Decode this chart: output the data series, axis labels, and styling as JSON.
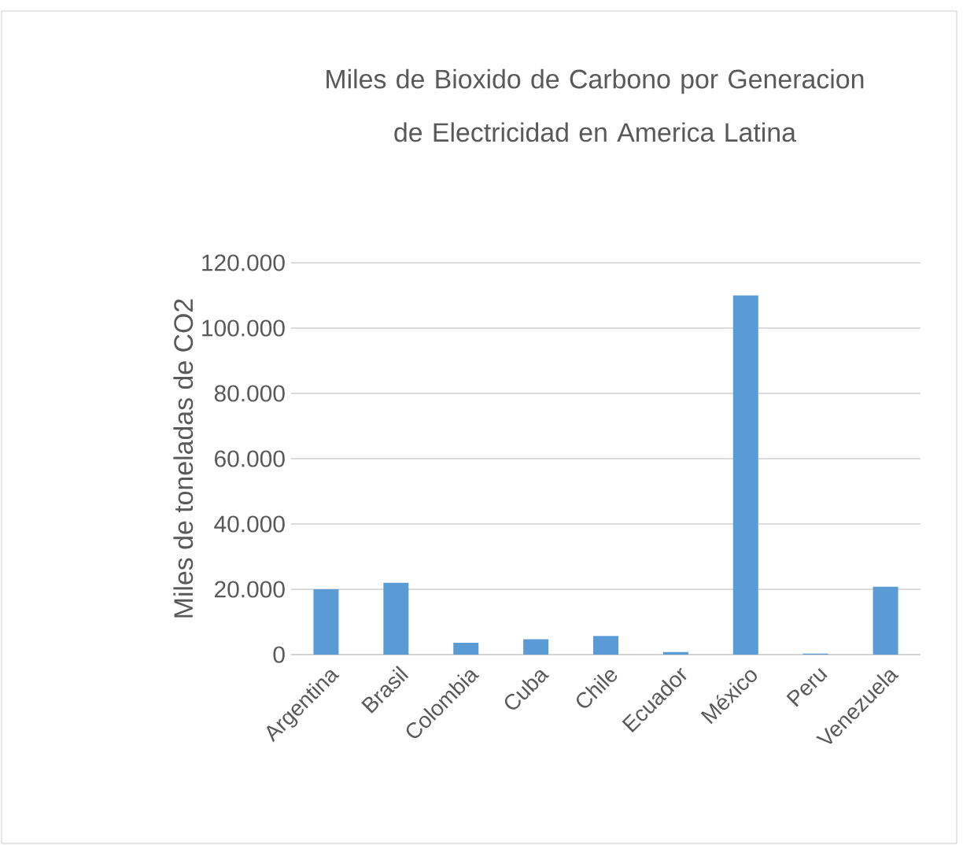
{
  "chart_data": {
    "type": "bar",
    "title": "Miles de Bioxido de Carbono por Generacion de Electricidad en America Latina",
    "ylabel": "Miles de toneladas de CO2",
    "categories": [
      "Argentina",
      "Brasil",
      "Colombia",
      "Cuba",
      "Chile",
      "Ecuador",
      "México",
      "Peru",
      "Venezuela"
    ],
    "values": [
      20000,
      22000,
      3600,
      4700,
      5700,
      800,
      110000,
      300,
      20800
    ],
    "color": "#5b9bd5",
    "ylim": [
      0,
      120000
    ],
    "yticks": [
      {
        "value": 0,
        "label": "0"
      },
      {
        "value": 20000,
        "label": "20.000"
      },
      {
        "value": 40000,
        "label": "40.000"
      },
      {
        "value": 60000,
        "label": "60.000"
      },
      {
        "value": 80000,
        "label": "80.000"
      },
      {
        "value": 100000,
        "label": "100.000"
      },
      {
        "value": 120000,
        "label": "120.000"
      }
    ],
    "grid": "y"
  }
}
